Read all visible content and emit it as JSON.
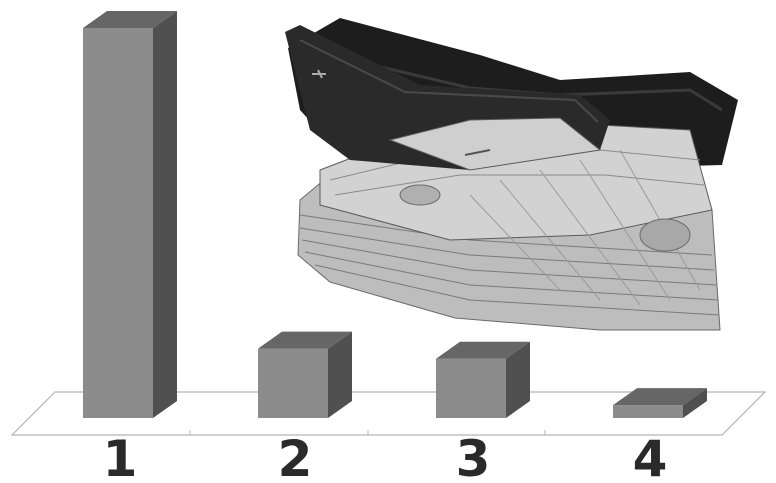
{
  "chart_data": {
    "type": "bar",
    "style": "3d-grayscale",
    "title": "",
    "categories": [
      "1",
      "2",
      "3",
      "4"
    ],
    "values": [
      100,
      17.8,
      15.2,
      3.3
    ],
    "ylim": [
      0,
      100
    ],
    "grid": false,
    "legend": "none",
    "colors": {
      "bar_front": "#8c8c8c",
      "bar_top": "#666666",
      "bar_side": "#505050",
      "floor_line": "#b4b4b4",
      "label": "#2a2a2a"
    },
    "illustration": "wallet-with-banknotes"
  }
}
